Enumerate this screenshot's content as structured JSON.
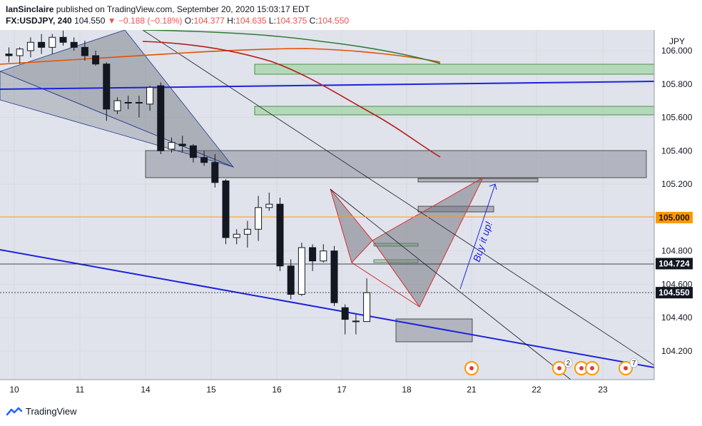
{
  "header": {
    "publisher": "IanSinclaire",
    "published_text": " published on TradingView.com, September 20, 2020 15:03:17 EDT",
    "symbol": "FX:USDJPY, 240",
    "last": "104.550",
    "change": "−0.188 (−0.18%)",
    "o_label": "O:",
    "o_value": "104.377",
    "h_label": "H:",
    "h_value": "104.635",
    "l_label": "L:",
    "l_value": "104.375",
    "c_label": "C:",
    "c_value": "104.550"
  },
  "footer": {
    "brand": "TradingView"
  },
  "colors": {
    "grid_bg": "#e0e3eb",
    "blue_line": "#1e22dd",
    "orange_line": "#ff9800",
    "red_ma": "#b71c1c",
    "green_ma": "#2e7d32",
    "orange_ma": "#e65100",
    "zone_green": "#a5d6a7",
    "zone_gray": "#9598a1",
    "pattern_red": "#d32f2f",
    "price_label_bg": "#131722"
  },
  "chart_data": {
    "type": "candlestick",
    "currency_label": "JPY",
    "y_ticks": [
      "106.000",
      "105.800",
      "105.600",
      "105.400",
      "105.200",
      "104.800",
      "104.600",
      "104.400",
      "104.200"
    ],
    "x_ticks": [
      "10",
      "11",
      "14",
      "15",
      "16",
      "17",
      "18",
      "21",
      "22",
      "23"
    ],
    "price_labels": [
      {
        "value": "105.000",
        "style": "orange"
      },
      {
        "value": "104.724",
        "style": "dark"
      },
      {
        "value": "104.550",
        "style": "dark"
      }
    ],
    "annotation": "Buy it up!",
    "event_badges": [
      "2",
      "7"
    ],
    "candles": [
      {
        "o": 105.98,
        "h": 106.02,
        "l": 105.93,
        "c": 105.97
      },
      {
        "o": 105.97,
        "h": 106.02,
        "l": 105.92,
        "c": 106.01
      },
      {
        "o": 106.0,
        "h": 106.08,
        "l": 105.96,
        "c": 106.05
      },
      {
        "o": 106.05,
        "h": 106.1,
        "l": 105.98,
        "c": 106.02
      },
      {
        "o": 106.02,
        "h": 106.1,
        "l": 105.98,
        "c": 106.08
      },
      {
        "o": 106.08,
        "h": 106.12,
        "l": 106.03,
        "c": 106.05
      },
      {
        "o": 106.05,
        "h": 106.08,
        "l": 106.0,
        "c": 106.02
      },
      {
        "o": 106.02,
        "h": 106.06,
        "l": 105.94,
        "c": 105.97
      },
      {
        "o": 105.97,
        "h": 106.0,
        "l": 105.91,
        "c": 105.92
      },
      {
        "o": 105.92,
        "h": 105.93,
        "l": 105.58,
        "c": 105.65
      },
      {
        "o": 105.64,
        "h": 105.72,
        "l": 105.62,
        "c": 105.7
      },
      {
        "o": 105.69,
        "h": 105.73,
        "l": 105.65,
        "c": 105.69
      },
      {
        "o": 105.69,
        "h": 105.73,
        "l": 105.6,
        "c": 105.69
      },
      {
        "o": 105.68,
        "h": 105.79,
        "l": 105.64,
        "c": 105.78
      },
      {
        "o": 105.79,
        "h": 105.81,
        "l": 105.38,
        "c": 105.4
      },
      {
        "o": 105.41,
        "h": 105.48,
        "l": 105.39,
        "c": 105.45
      },
      {
        "o": 105.44,
        "h": 105.49,
        "l": 105.39,
        "c": 105.43
      },
      {
        "o": 105.43,
        "h": 105.44,
        "l": 105.33,
        "c": 105.36
      },
      {
        "o": 105.36,
        "h": 105.4,
        "l": 105.31,
        "c": 105.33
      },
      {
        "o": 105.33,
        "h": 105.38,
        "l": 105.18,
        "c": 105.21
      },
      {
        "o": 105.22,
        "h": 105.23,
        "l": 104.84,
        "c": 104.88
      },
      {
        "o": 104.88,
        "h": 104.93,
        "l": 104.84,
        "c": 104.9
      },
      {
        "o": 104.9,
        "h": 104.98,
        "l": 104.82,
        "c": 104.93
      },
      {
        "o": 104.93,
        "h": 105.13,
        "l": 104.86,
        "c": 105.06
      },
      {
        "o": 105.06,
        "h": 105.15,
        "l": 105.04,
        "c": 105.08
      },
      {
        "o": 105.08,
        "h": 105.12,
        "l": 104.68,
        "c": 104.71
      },
      {
        "o": 104.71,
        "h": 104.75,
        "l": 104.51,
        "c": 104.54
      },
      {
        "o": 104.54,
        "h": 104.85,
        "l": 104.53,
        "c": 104.82
      },
      {
        "o": 104.82,
        "h": 104.84,
        "l": 104.68,
        "c": 104.74
      },
      {
        "o": 104.74,
        "h": 104.84,
        "l": 104.73,
        "c": 104.8
      },
      {
        "o": 104.8,
        "h": 104.83,
        "l": 104.47,
        "c": 104.49
      },
      {
        "o": 104.46,
        "h": 104.48,
        "l": 104.3,
        "c": 104.39
      },
      {
        "o": 104.38,
        "h": 104.42,
        "l": 104.3,
        "c": 104.38
      },
      {
        "o": 104.377,
        "h": 104.635,
        "l": 104.375,
        "c": 104.55
      }
    ]
  }
}
